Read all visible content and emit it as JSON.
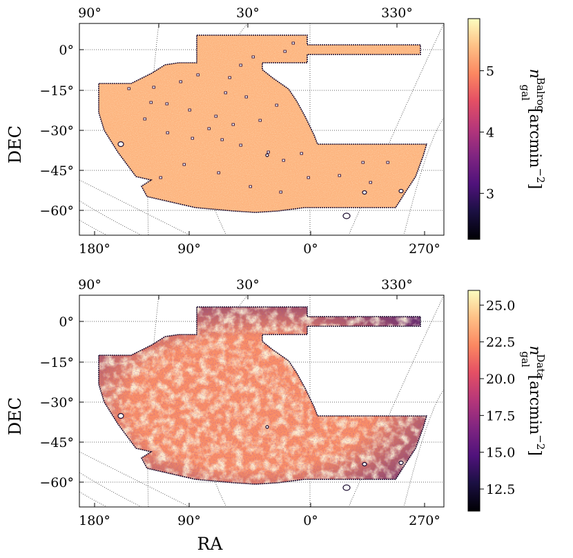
{
  "chart_data": [
    {
      "type": "heatmap",
      "projection": "sky map (RA/DEC)",
      "xlabel": "",
      "ylabel": "DEC",
      "ra_top_ticks": [
        "90°",
        "30°",
        "330°"
      ],
      "ra_bottom_ticks": [
        "180°",
        "90°",
        "0°",
        "270°"
      ],
      "dec_ticks": [
        "0°",
        "−15°",
        "−30°",
        "−45°",
        "−60°"
      ],
      "dec_values": [
        0,
        -15,
        -30,
        -45,
        -60
      ],
      "colorbar": {
        "label_base": "n",
        "label_sub": "gal",
        "label_sup": "Balrog",
        "label_units": "[arcmin",
        "label_exp": "−2",
        "label_close": "]",
        "range": [
          2.25,
          5.85
        ],
        "ticks": [
          3,
          4,
          5
        ],
        "tick_labels": [
          "3",
          "4",
          "5"
        ],
        "colormap": "magma"
      },
      "map_style": "uniform",
      "mean_value": 5.3
    },
    {
      "type": "heatmap",
      "projection": "sky map (RA/DEC)",
      "xlabel": "RA",
      "ylabel": "DEC",
      "ra_top_ticks": [
        "90°",
        "30°",
        "330°"
      ],
      "ra_bottom_ticks": [
        "180°",
        "90°",
        "0°",
        "270°"
      ],
      "dec_ticks": [
        "0°",
        "−15°",
        "−30°",
        "−45°",
        "−60°"
      ],
      "dec_values": [
        0,
        -15,
        -30,
        -45,
        -60
      ],
      "colorbar": {
        "label_base": "n",
        "label_sub": "gal",
        "label_sup": "Data",
        "label_units": "[arcmin",
        "label_exp": "−2",
        "label_close": "]",
        "range": [
          11.0,
          26.0
        ],
        "ticks": [
          12.5,
          15.0,
          17.5,
          20.0,
          22.5,
          25.0
        ],
        "tick_labels": [
          "12.5",
          "15.0",
          "17.5",
          "20.0",
          "22.5",
          "25.0"
        ],
        "colormap": "magma"
      },
      "map_style": "textured",
      "mean_value": 22.5
    }
  ]
}
